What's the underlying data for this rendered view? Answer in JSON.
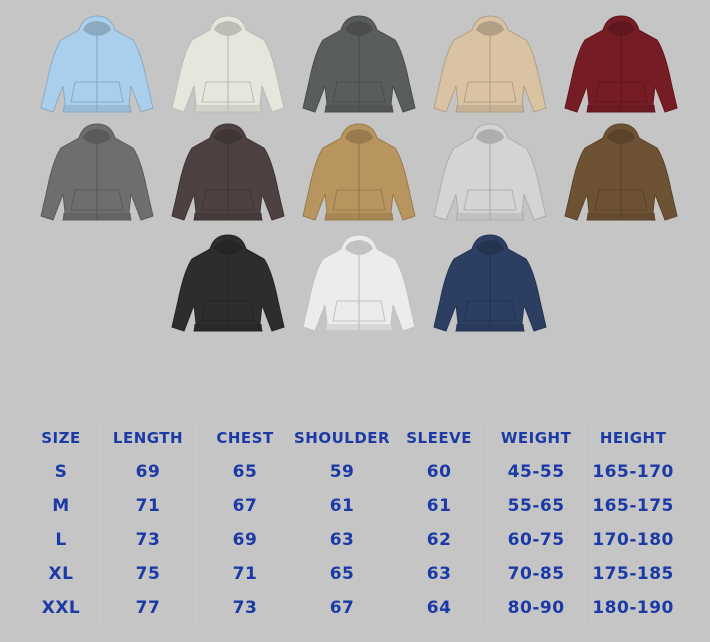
{
  "product": {
    "colors": [
      "#a9cfec",
      "#e6e6dc",
      "#5a5e5a",
      "#d9c3a3",
      "#761c24",
      "#6e6e6c",
      "#4d4141",
      "#b8955f",
      "#d4d4d4",
      "#6e5234",
      "#2d2d2f",
      "#ececea",
      "#2c3f62"
    ]
  },
  "size_table": {
    "text_color": "#1b3aa6",
    "headers": [
      "SIZE",
      "LENGTH",
      "CHEST",
      "SHOULDER",
      "SLEEVE",
      "WEIGHT",
      "HEIGHT"
    ],
    "rows": [
      [
        "S",
        "69",
        "65",
        "59",
        "60",
        "45-55",
        "165-170"
      ],
      [
        "M",
        "71",
        "67",
        "61",
        "61",
        "55-65",
        "165-175"
      ],
      [
        "L",
        "73",
        "69",
        "63",
        "62",
        "60-75",
        "170-180"
      ],
      [
        "XL",
        "75",
        "71",
        "65",
        "63",
        "70-85",
        "175-185"
      ],
      [
        "XXL",
        "77",
        "73",
        "67",
        "64",
        "80-90",
        "180-190"
      ]
    ]
  }
}
